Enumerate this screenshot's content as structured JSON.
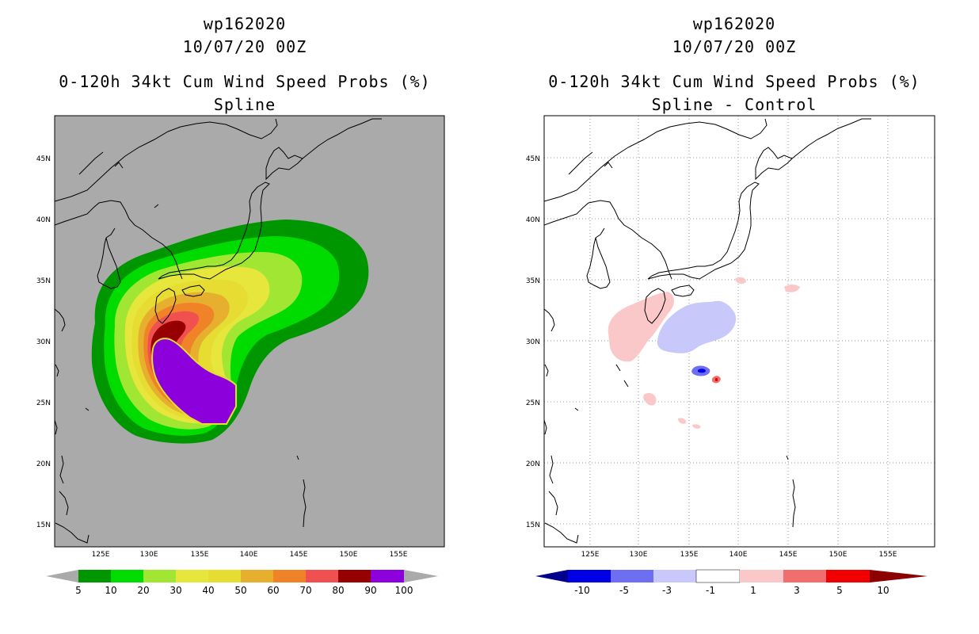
{
  "panels": [
    {
      "storm_id": "wp162020",
      "datetime": "10/07/20 00Z",
      "product": "0-120h 34kt Cum Wind Speed Probs (%)",
      "subtitle": "Spline"
    },
    {
      "storm_id": "wp162020",
      "datetime": "10/07/20 00Z",
      "product": "0-120h 34kt Cum Wind Speed Probs (%)",
      "subtitle": "Spline - Control"
    }
  ],
  "chart_data": [
    {
      "type": "heatmap",
      "title": "0-120h 34kt Cum Wind Speed Probs (%)",
      "subtitle": "Spline",
      "x_ticks": [
        "125E",
        "130E",
        "135E",
        "140E",
        "145E",
        "150E",
        "155E"
      ],
      "y_ticks": [
        "15N",
        "20N",
        "25N",
        "30N",
        "35N",
        "40N",
        "45N"
      ],
      "xlim": [
        120.5,
        159.5
      ],
      "ylim": [
        13,
        48.5
      ],
      "grid": false,
      "background_color": "#aaaaaa",
      "colorbar_labels": [
        "5",
        "10",
        "20",
        "30",
        "40",
        "50",
        "60",
        "70",
        "80",
        "90",
        "100"
      ],
      "colorbar_colors": [
        "#009600",
        "#00dc00",
        "#a0e632",
        "#e6e63c",
        "#e6dc32",
        "#e6af2d",
        "#f08228",
        "#f05050",
        "#960000",
        "#8c00dc"
      ],
      "colorbar_end_color": "#aaaaaa",
      "contours": [
        {
          "level": 5,
          "color": "#009600"
        },
        {
          "level": 10,
          "color": "#00dc00"
        },
        {
          "level": 20,
          "color": "#a0e632"
        },
        {
          "level": 30,
          "color": "#e6e63c"
        },
        {
          "level": 40,
          "color": "#e6dc32"
        },
        {
          "level": 50,
          "color": "#e6af2d"
        },
        {
          "level": 60,
          "color": "#f08228"
        },
        {
          "level": 70,
          "color": "#f05050"
        },
        {
          "level": 80,
          "color": "#960000"
        },
        {
          "level": 90,
          "color": "#8c00dc"
        }
      ]
    },
    {
      "type": "heatmap",
      "title": "0-120h 34kt Cum Wind Speed Probs (%)",
      "subtitle": "Spline - Control",
      "x_ticks": [
        "125E",
        "130E",
        "135E",
        "140E",
        "145E",
        "150E",
        "155E"
      ],
      "y_ticks": [
        "15N",
        "20N",
        "25N",
        "30N",
        "35N",
        "40N",
        "45N"
      ],
      "xlim": [
        120.5,
        159.5
      ],
      "ylim": [
        13,
        48.5
      ],
      "grid": true,
      "background_color": "#ffffff",
      "colorbar_labels": [
        "-10",
        "-5",
        "-3",
        "-1",
        "1",
        "3",
        "5",
        "10"
      ],
      "colorbar_colors": [
        "#0000e6",
        "#6e6ef0",
        "#c8c8fa",
        "#ffffff",
        "#fac8c8",
        "#f06e6e",
        "#f00000"
      ],
      "colorbar_end_colors": [
        "#00008c",
        "#8c0000"
      ],
      "anomaly_areas": [
        {
          "region": "western Kyushu / west of 130E, 29-34N",
          "range": "1 to 3",
          "color": "#fac8c8"
        },
        {
          "region": "south of Honshu, 133-143E, 29-33N",
          "range": "-1 to -3",
          "color": "#c8c8fa"
        },
        {
          "region": "near 136E 27.5N",
          "range": "-5 to -10",
          "color": "#0000e6"
        },
        {
          "region": "near 138E 27N",
          "range": "5 to 10",
          "color": "#f00000"
        },
        {
          "region": "scattered 145-147E 34-35N, 130-133E 23-25N",
          "range": "1 to 3",
          "color": "#fac8c8"
        }
      ]
    }
  ]
}
